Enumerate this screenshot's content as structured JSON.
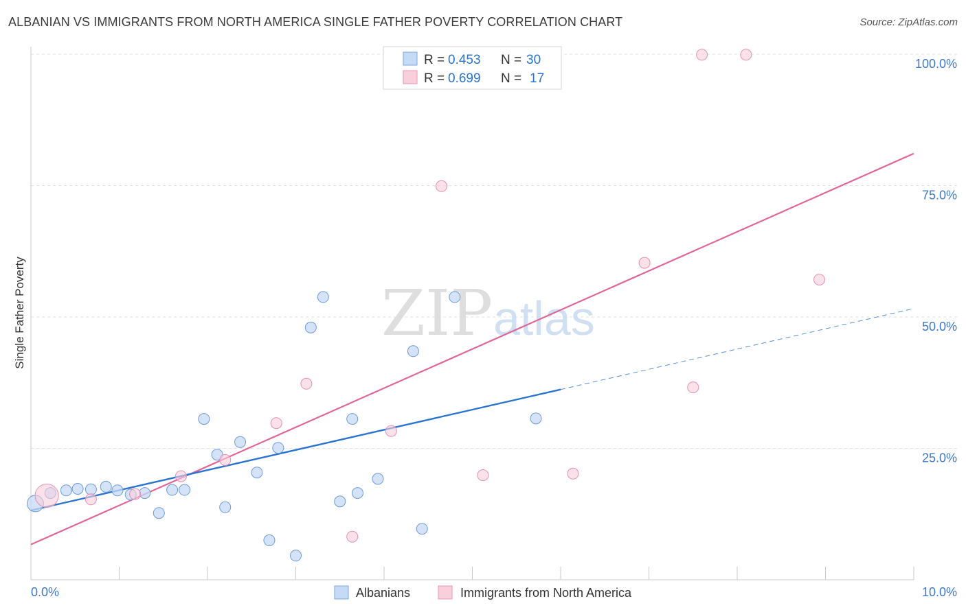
{
  "title": "ALBANIAN VS IMMIGRANTS FROM NORTH AMERICA SINGLE FATHER POVERTY CORRELATION CHART",
  "source": "Source: ZipAtlas.com",
  "watermark": {
    "zip": "ZIP",
    "atlas": "atlas"
  },
  "colors": {
    "blue": "#2a74d0",
    "blue_fill": "#c5daf5",
    "pink": "#e0669a",
    "pink_fill": "#f9cfdc",
    "axis_text": "#3d78c8",
    "grid": "#e2e2e2"
  },
  "chart_data": {
    "type": "scatter",
    "title": "ALBANIAN VS IMMIGRANTS FROM NORTH AMERICA SINGLE FATHER POVERTY CORRELATION CHART",
    "xlabel": "",
    "ylabel": "Single Father Poverty",
    "xlim": [
      0,
      10
    ],
    "ylim": [
      0,
      100
    ],
    "x_tick_labels": [
      "0.0%",
      "10.0%"
    ],
    "y_tick_labels": [
      "25.0%",
      "50.0%",
      "75.0%",
      "100.0%"
    ],
    "y_ticks": [
      25,
      50,
      75,
      100
    ],
    "grid": true,
    "legend": [
      {
        "name": "R = ",
        "r": "0.453",
        "n_label": "N = ",
        "n": "30"
      },
      {
        "name": "R = ",
        "r": "0.699",
        "n_label": "N = ",
        "n": "17"
      }
    ],
    "series": [
      {
        "name": "Albanians",
        "color": "#2a74d0",
        "points": [
          {
            "x": 0.05,
            "y": 14.5,
            "big": true
          },
          {
            "x": 0.22,
            "y": 16.5
          },
          {
            "x": 0.4,
            "y": 17.0
          },
          {
            "x": 0.53,
            "y": 17.3
          },
          {
            "x": 0.68,
            "y": 17.2
          },
          {
            "x": 0.85,
            "y": 17.7
          },
          {
            "x": 0.98,
            "y": 17.0
          },
          {
            "x": 1.13,
            "y": 16.2
          },
          {
            "x": 1.29,
            "y": 16.5
          },
          {
            "x": 1.45,
            "y": 12.7
          },
          {
            "x": 1.6,
            "y": 17.1
          },
          {
            "x": 1.74,
            "y": 17.1
          },
          {
            "x": 1.96,
            "y": 30.6
          },
          {
            "x": 2.11,
            "y": 23.8
          },
          {
            "x": 2.2,
            "y": 13.8
          },
          {
            "x": 2.37,
            "y": 26.2
          },
          {
            "x": 2.56,
            "y": 20.4
          },
          {
            "x": 2.7,
            "y": 7.5
          },
          {
            "x": 2.8,
            "y": 25.1
          },
          {
            "x": 3.0,
            "y": 4.6
          },
          {
            "x": 3.17,
            "y": 48.0
          },
          {
            "x": 3.31,
            "y": 53.8
          },
          {
            "x": 3.5,
            "y": 14.9
          },
          {
            "x": 3.64,
            "y": 30.6
          },
          {
            "x": 3.7,
            "y": 16.5
          },
          {
            "x": 3.93,
            "y": 19.2
          },
          {
            "x": 4.33,
            "y": 43.5
          },
          {
            "x": 4.43,
            "y": 9.7
          },
          {
            "x": 4.8,
            "y": 53.8
          },
          {
            "x": 5.72,
            "y": 30.7
          }
        ],
        "trend": {
          "x": [
            0.0,
            6.0
          ],
          "y": [
            13.2,
            36.2
          ]
        },
        "trend_extension": {
          "x": [
            6.0,
            10.0
          ],
          "y": [
            36.2,
            51.6
          ]
        }
      },
      {
        "name": "Immigrants from North America",
        "color": "#e0669a",
        "points": [
          {
            "x": 0.18,
            "y": 16.0,
            "big": true
          },
          {
            "x": 0.68,
            "y": 15.3
          },
          {
            "x": 1.18,
            "y": 16.3
          },
          {
            "x": 1.7,
            "y": 19.7
          },
          {
            "x": 2.2,
            "y": 22.8
          },
          {
            "x": 2.78,
            "y": 29.8
          },
          {
            "x": 3.12,
            "y": 37.3
          },
          {
            "x": 3.64,
            "y": 8.2
          },
          {
            "x": 4.08,
            "y": 28.3
          },
          {
            "x": 4.65,
            "y": 74.9
          },
          {
            "x": 5.12,
            "y": 19.9
          },
          {
            "x": 6.14,
            "y": 20.2
          },
          {
            "x": 6.95,
            "y": 60.3
          },
          {
            "x": 7.5,
            "y": 36.6
          },
          {
            "x": 7.6,
            "y": 99.9
          },
          {
            "x": 8.1,
            "y": 99.9
          },
          {
            "x": 8.93,
            "y": 57.1
          }
        ],
        "trend": {
          "x": [
            0.0,
            10.0
          ],
          "y": [
            6.7,
            81.1
          ]
        }
      }
    ]
  },
  "bottom_legend": [
    "Albanians",
    "Immigrants from North America"
  ]
}
